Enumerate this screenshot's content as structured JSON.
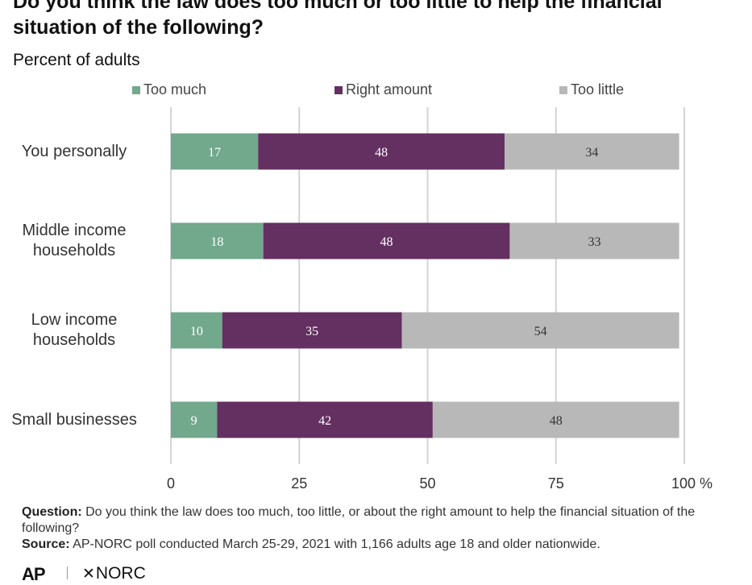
{
  "chart_data": {
    "type": "bar",
    "orientation": "horizontal",
    "stacked": true,
    "title": "Do you think the law does too much or too little to help the financial situation of the following?",
    "subtitle": "Percent of adults",
    "categories": [
      "You personally",
      "Middle income households",
      "Low income households",
      "Small businesses"
    ],
    "category_lines": [
      [
        "You personally"
      ],
      [
        "Middle income",
        "households"
      ],
      [
        "Low income",
        "households"
      ],
      [
        "Small businesses"
      ]
    ],
    "series": [
      {
        "name": "Too much",
        "color": "#72a88c",
        "label_color": "#ffffff",
        "values": [
          17,
          18,
          10,
          9
        ]
      },
      {
        "name": "Right amount",
        "color": "#642f61",
        "label_color": "#ffffff",
        "values": [
          48,
          48,
          35,
          42
        ]
      },
      {
        "name": "Too little",
        "color": "#b8b8b8",
        "label_color": "#333333",
        "values": [
          34,
          33,
          54,
          48
        ]
      }
    ],
    "xlim": [
      0,
      100
    ],
    "xticks": [
      0,
      25,
      50,
      75,
      100
    ],
    "xtick_labels": [
      "0",
      "25",
      "50",
      "75",
      "100 %"
    ],
    "grid": true,
    "legend_position": "top"
  },
  "footer": {
    "question_label": "Question:",
    "question_text": "Do you think the law does too much, too little, or about the right amount to help the financial situation of the following?",
    "source_label": "Source:",
    "source_text": "AP-NORC poll conducted March 25-29, 2021 with 1,166 adults age 18 and older nationwide.",
    "logo_ap": "AP",
    "logo_norc": "NORC"
  }
}
